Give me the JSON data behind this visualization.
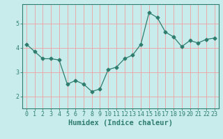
{
  "x": [
    0,
    1,
    2,
    3,
    4,
    5,
    6,
    7,
    8,
    9,
    10,
    11,
    12,
    13,
    14,
    15,
    16,
    17,
    18,
    19,
    20,
    21,
    22,
    23
  ],
  "y": [
    4.15,
    3.85,
    3.55,
    3.55,
    3.5,
    2.5,
    2.65,
    2.5,
    2.2,
    2.3,
    3.1,
    3.2,
    3.55,
    3.7,
    4.15,
    5.45,
    5.25,
    4.65,
    4.45,
    4.05,
    4.3,
    4.2,
    4.35,
    4.4
  ],
  "line_color": "#2e7d6e",
  "marker": "D",
  "marker_size": 2.5,
  "bg_color": "#c8ecec",
  "grid_color": "#f0a0a0",
  "axis_color": "#2e7d6e",
  "xlabel": "Humidex (Indice chaleur)",
  "ylim": [
    1.5,
    5.8
  ],
  "xlim": [
    -0.5,
    23.5
  ],
  "yticks": [
    2,
    3,
    4,
    5
  ],
  "xticks": [
    0,
    1,
    2,
    3,
    4,
    5,
    6,
    7,
    8,
    9,
    10,
    11,
    12,
    13,
    14,
    15,
    16,
    17,
    18,
    19,
    20,
    21,
    22,
    23
  ],
  "xlabel_fontsize": 7.5,
  "tick_fontsize": 6
}
